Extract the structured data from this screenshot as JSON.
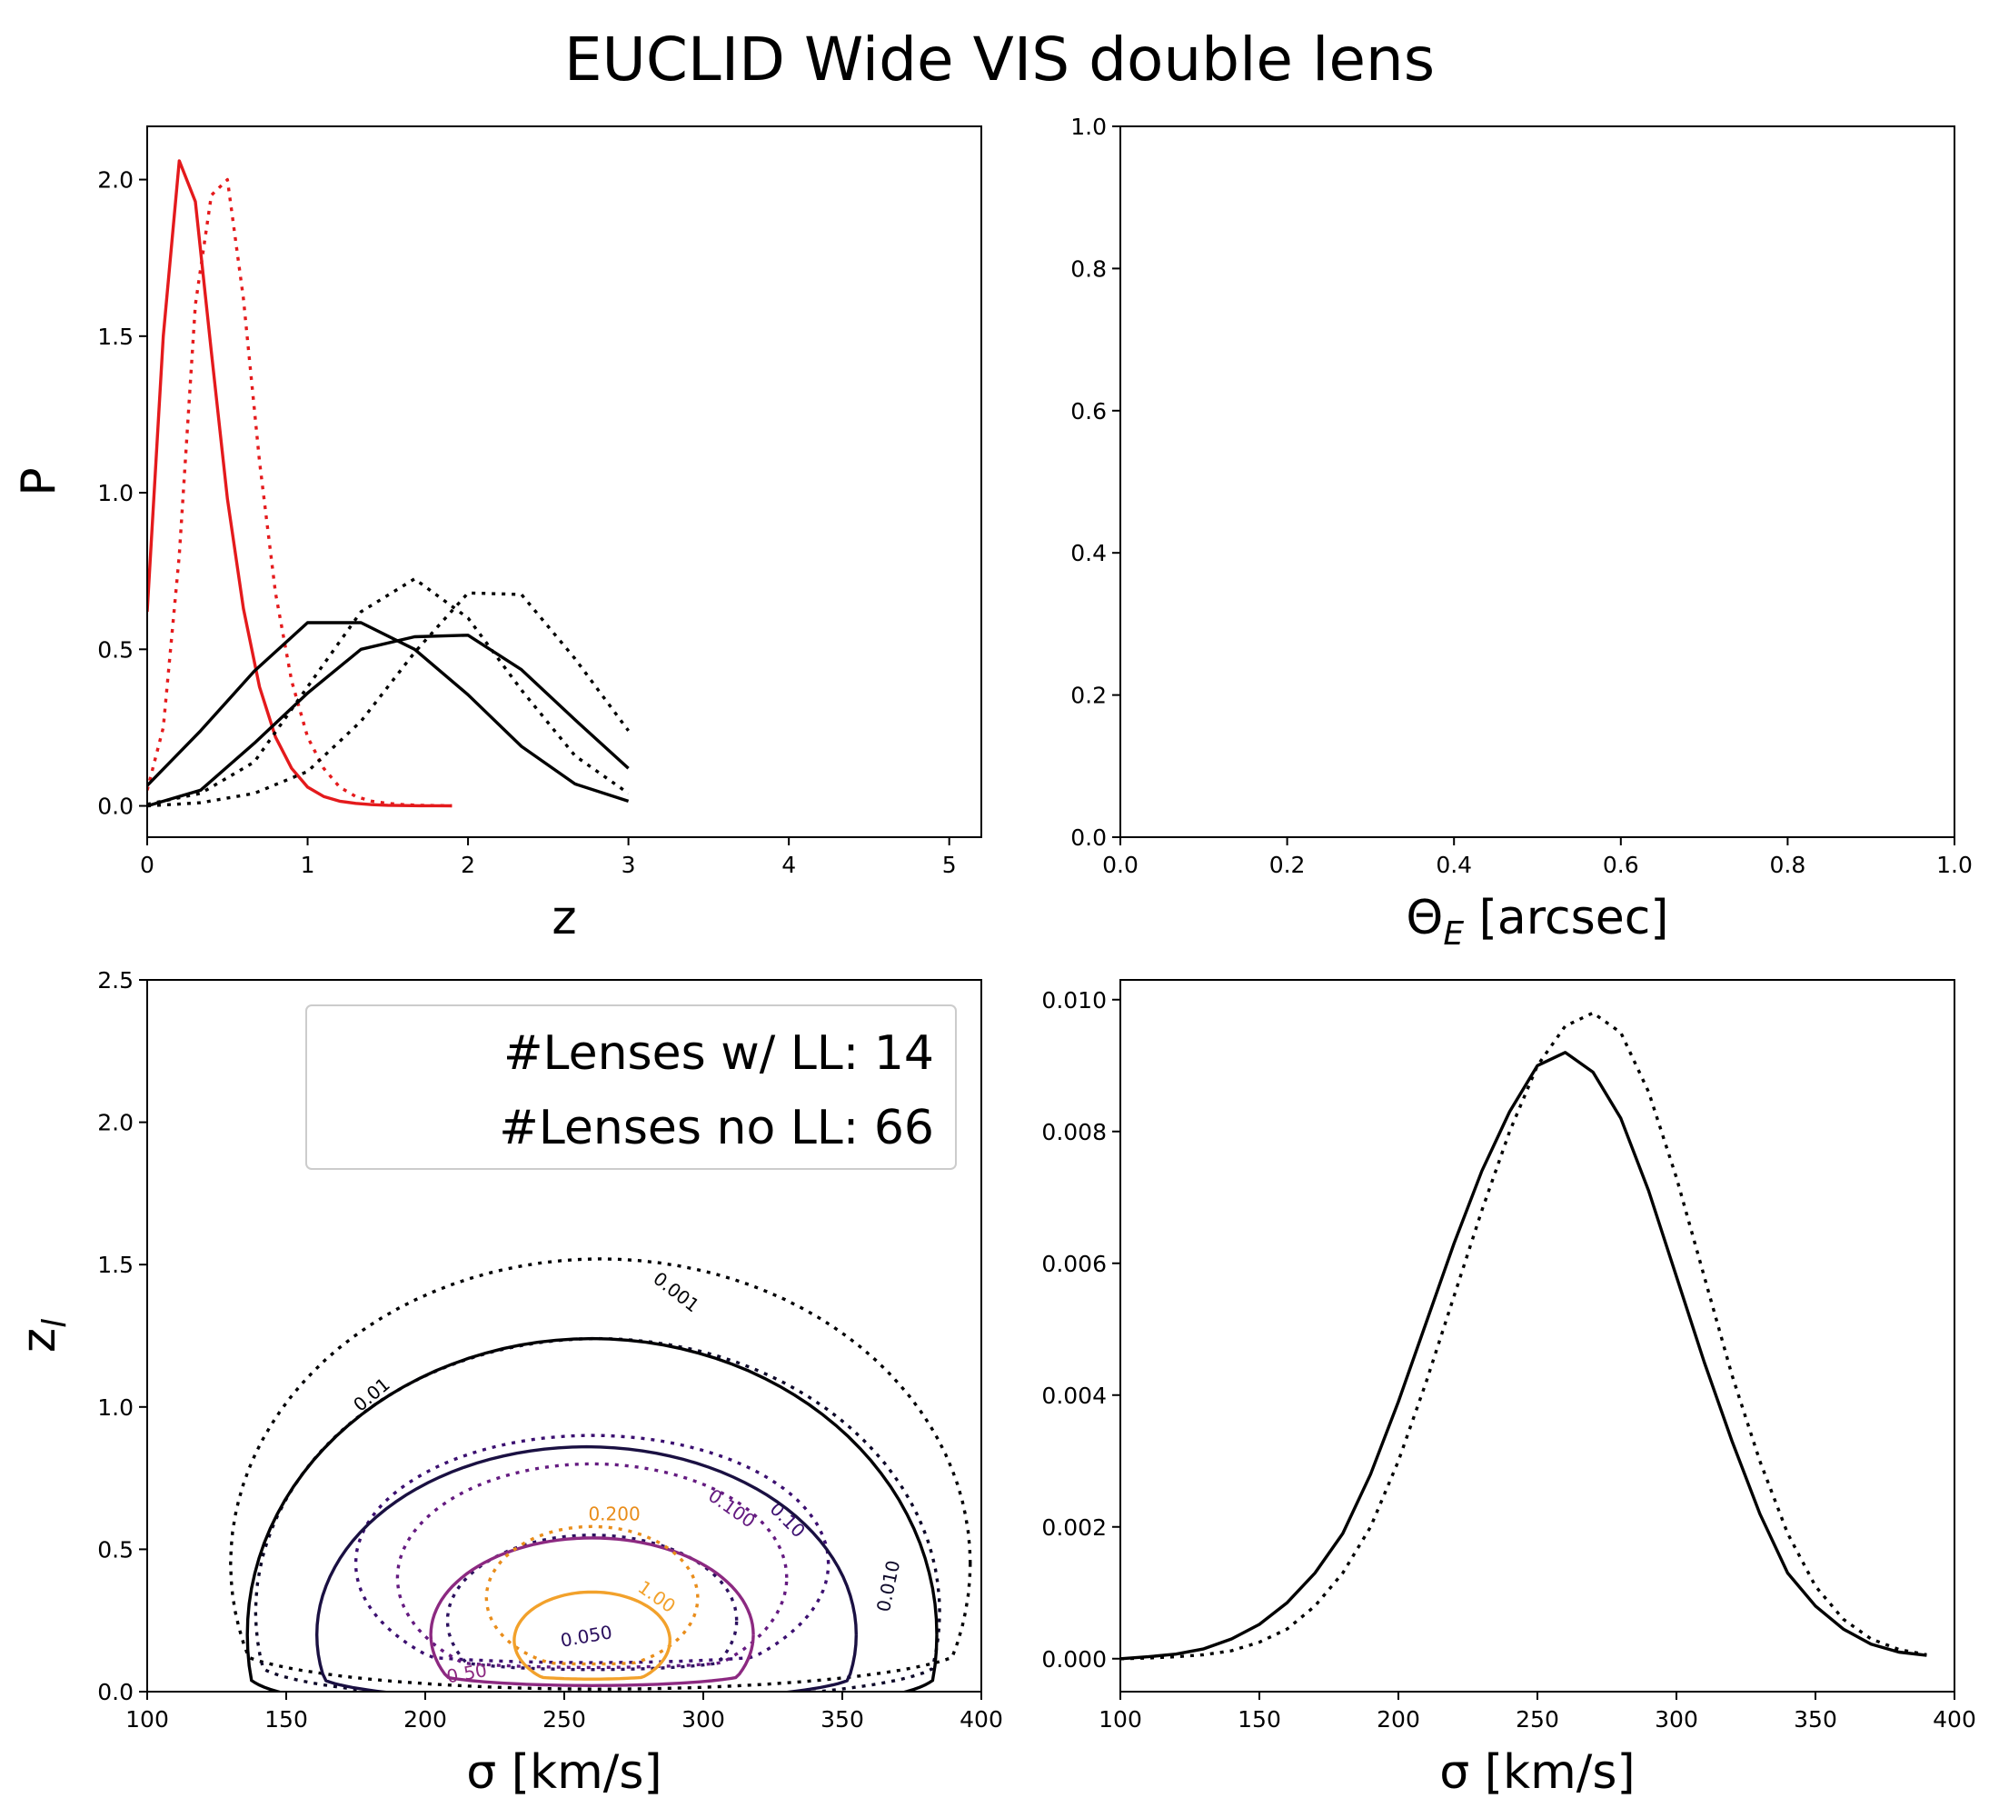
{
  "figure": {
    "title": "EUCLID Wide VIS double lens"
  },
  "chart_data": [
    {
      "panel": "top-left",
      "type": "line",
      "xlabel": "z",
      "ylabel": "P",
      "xlim": [
        0,
        5.2
      ],
      "ylim": [
        -0.1,
        2.17
      ],
      "xticks": [
        0,
        1,
        2,
        3,
        4,
        5
      ],
      "xtick_labels": [
        "0",
        "1",
        "2",
        "3",
        "4",
        "5"
      ],
      "yticks": [
        0.0,
        0.5,
        1.0,
        1.5,
        2.0
      ],
      "ytick_labels": [
        "0.0",
        "0.5",
        "1.0",
        "1.5",
        "2.0"
      ],
      "series": [
        {
          "color": "#e41a1c",
          "style": "solid",
          "x": [
            0,
            0.1,
            0.2,
            0.3,
            0.4,
            0.5,
            0.6,
            0.7,
            0.8,
            0.9,
            1.0,
            1.1,
            1.2,
            1.3,
            1.4,
            1.5,
            1.6,
            1.7,
            1.8,
            1.9
          ],
          "y": [
            0.62,
            1.5,
            2.06,
            1.93,
            1.45,
            0.98,
            0.63,
            0.38,
            0.22,
            0.12,
            0.06,
            0.03,
            0.015,
            0.008,
            0.004,
            0.002,
            0.001,
            0.0005,
            0.0003,
            0.0002
          ]
        },
        {
          "color": "#e41a1c",
          "style": "dotted",
          "x": [
            0,
            0.1,
            0.2,
            0.3,
            0.4,
            0.5,
            0.6,
            0.7,
            0.8,
            0.9,
            1.0,
            1.1,
            1.2,
            1.3,
            1.4,
            1.5,
            1.6,
            1.7,
            1.8,
            1.9
          ],
          "y": [
            0.05,
            0.25,
            0.8,
            1.6,
            1.95,
            2.0,
            1.62,
            1.1,
            0.68,
            0.4,
            0.22,
            0.12,
            0.06,
            0.03,
            0.015,
            0.008,
            0.004,
            0.002,
            0.001,
            0.0005
          ]
        },
        {
          "color": "#000000",
          "style": "solid",
          "x": [
            0,
            0.333,
            0.667,
            1.0,
            1.333,
            1.667,
            2.0,
            2.333,
            2.667,
            3.0
          ],
          "y": [
            0.065,
            0.24,
            0.43,
            0.585,
            0.585,
            0.5,
            0.355,
            0.19,
            0.07,
            0.015
          ]
        },
        {
          "color": "#000000",
          "style": "solid",
          "x": [
            0,
            0.333,
            0.667,
            1.0,
            1.333,
            1.667,
            2.0,
            2.333,
            2.667,
            3.0
          ],
          "y": [
            0.0,
            0.05,
            0.2,
            0.36,
            0.5,
            0.54,
            0.545,
            0.435,
            0.275,
            0.12
          ]
        },
        {
          "color": "#000000",
          "style": "dotted",
          "x": [
            0,
            0.333,
            0.667,
            1.0,
            1.333,
            1.667,
            2.0,
            2.333,
            2.667,
            3.0
          ],
          "y": [
            0.005,
            0.04,
            0.14,
            0.38,
            0.62,
            0.725,
            0.6,
            0.37,
            0.16,
            0.04
          ]
        },
        {
          "color": "#000000",
          "style": "dotted",
          "x": [
            0,
            0.333,
            0.667,
            1.0,
            1.333,
            1.667,
            2.0,
            2.333,
            2.667,
            3.0
          ],
          "y": [
            0.0,
            0.01,
            0.04,
            0.11,
            0.27,
            0.49,
            0.68,
            0.675,
            0.47,
            0.24
          ]
        }
      ]
    },
    {
      "panel": "top-right",
      "type": "line",
      "xlabel": "Θ_E [arcsec]",
      "ylabel": "",
      "xlim": [
        0,
        1
      ],
      "ylim": [
        0,
        1
      ],
      "xticks": [
        0.0,
        0.2,
        0.4,
        0.6,
        0.8,
        1.0
      ],
      "xtick_labels": [
        "0.0",
        "0.2",
        "0.4",
        "0.6",
        "0.8",
        "1.0"
      ],
      "yticks": [
        0.0,
        0.2,
        0.4,
        0.6,
        0.8,
        1.0
      ],
      "ytick_labels": [
        "0.0",
        "0.2",
        "0.4",
        "0.6",
        "0.8",
        "1.0"
      ],
      "series": []
    },
    {
      "panel": "bottom-left",
      "type": "contour",
      "xlabel": "σ [km/s]",
      "ylabel": "z_l",
      "xlim": [
        100,
        400
      ],
      "ylim": [
        0,
        2.5
      ],
      "xticks": [
        100,
        150,
        200,
        250,
        300,
        350,
        400
      ],
      "xtick_labels": [
        "100",
        "150",
        "200",
        "250",
        "300",
        "350",
        "400"
      ],
      "yticks": [
        0.0,
        0.5,
        1.0,
        1.5,
        2.0,
        2.5
      ],
      "ytick_labels": [
        "0.0",
        "0.5",
        "1.0",
        "1.5",
        "2.0",
        "2.5"
      ],
      "legend": {
        "placement": "upper right",
        "lines": [
          "#Lenses w/ LL: 14",
          "#Lenses no LL: 66"
        ]
      },
      "contours": [
        {
          "label": "0.001",
          "style": "dotted",
          "color": "#000004",
          "cx": 263,
          "cy": 0.45,
          "rx": 133,
          "ry": 1.07,
          "ybottom": 0.12,
          "label_at": [
            290,
            1.4
          ],
          "label_rot": 38
        },
        {
          "label": "0.010",
          "style": "dotted",
          "color": "#0d0829",
          "cx": 262,
          "cy": 0.28,
          "rx": 123,
          "ry": 0.96,
          "ybottom": 0.08,
          "label_at": [
            367,
            0.37
          ],
          "label_rot": -78
        },
        {
          "label": "0.01",
          "style": "solid",
          "color": "#000004",
          "cx": 260,
          "cy": 0.2,
          "rx": 124,
          "ry": 1.04,
          "ybottom": 0.04,
          "label_at": [
            181,
            1.04
          ],
          "label_rot": -40
        },
        {
          "label": "0.10",
          "style": "dotted",
          "color": "#3b0f70",
          "cx": 260,
          "cy": 0.45,
          "rx": 85,
          "ry": 0.45,
          "ybottom": 0.12,
          "label_at": [
            330,
            0.6
          ],
          "label_rot": 45
        },
        {
          "label": "",
          "style": "solid",
          "color": "#1a1042",
          "cx": 258,
          "cy": 0.2,
          "rx": 97,
          "ry": 0.66,
          "ybottom": 0.04,
          "label_at": null,
          "label_rot": 0
        },
        {
          "label": "0.100",
          "style": "dotted",
          "color": "#641a80",
          "cx": 260,
          "cy": 0.4,
          "rx": 70,
          "ry": 0.4,
          "ybottom": 0.1,
          "label_at": [
            310,
            0.64
          ],
          "label_rot": 35
        },
        {
          "label": "0.050",
          "style": "dotted",
          "color": "#2c115f",
          "cx": 260,
          "cy": 0.25,
          "rx": 52,
          "ry": 0.3,
          "ybottom": 0.1,
          "label_at": [
            258,
            0.19
          ],
          "label_rot": -10
        },
        {
          "label": "0.50",
          "style": "solid",
          "color": "#8c2981",
          "cx": 260,
          "cy": 0.2,
          "rx": 58,
          "ry": 0.34,
          "ybottom": 0.05,
          "label_at": [
            215,
            0.06
          ],
          "label_rot": -10
        },
        {
          "label": "0.200",
          "style": "dotted",
          "color": "#e98d1b",
          "cx": 260,
          "cy": 0.33,
          "rx": 38,
          "ry": 0.25,
          "ybottom": 0.1,
          "label_at": [
            268,
            0.62
          ],
          "label_rot": 0
        },
        {
          "label": "1.00",
          "style": "solid",
          "color": "#f2a12b",
          "cx": 260,
          "cy": 0.18,
          "rx": 28,
          "ry": 0.17,
          "ybottom": 0.05,
          "label_at": [
            283,
            0.33
          ],
          "label_rot": 35
        }
      ]
    },
    {
      "panel": "bottom-right",
      "type": "line",
      "xlabel": "σ [km/s]",
      "ylabel": "",
      "xlim": [
        100,
        400
      ],
      "ylim": [
        -0.0005,
        0.0103
      ],
      "xticks": [
        100,
        150,
        200,
        250,
        300,
        350,
        400
      ],
      "xtick_labels": [
        "100",
        "150",
        "200",
        "250",
        "300",
        "350",
        "400"
      ],
      "yticks": [
        0.0,
        0.002,
        0.004,
        0.006,
        0.008,
        0.01
      ],
      "ytick_labels": [
        "0.000",
        "0.002",
        "0.004",
        "0.006",
        "0.008",
        "0.010"
      ],
      "series": [
        {
          "color": "#000000",
          "style": "solid",
          "x": [
            100,
            110,
            120,
            130,
            140,
            150,
            160,
            170,
            180,
            190,
            200,
            210,
            220,
            230,
            240,
            250,
            260,
            270,
            280,
            290,
            300,
            310,
            320,
            330,
            340,
            350,
            360,
            370,
            380,
            390
          ],
          "y": [
            0.0,
            3e-05,
            7e-05,
            0.00015,
            0.0003,
            0.00052,
            0.00085,
            0.0013,
            0.0019,
            0.0028,
            0.0039,
            0.0051,
            0.0063,
            0.0074,
            0.0083,
            0.009,
            0.0092,
            0.0089,
            0.0082,
            0.0071,
            0.0058,
            0.0045,
            0.0033,
            0.0022,
            0.0013,
            0.0008,
            0.00045,
            0.00022,
            0.0001,
            5e-05
          ]
        },
        {
          "color": "#000000",
          "style": "dotted",
          "x": [
            100,
            110,
            120,
            130,
            140,
            150,
            160,
            170,
            180,
            190,
            200,
            210,
            220,
            230,
            240,
            250,
            260,
            270,
            280,
            290,
            300,
            310,
            320,
            330,
            340,
            350,
            360,
            370,
            380,
            390
          ],
          "y": [
            0.0,
            1e-05,
            3e-05,
            6e-05,
            0.00012,
            0.00025,
            0.00045,
            0.0008,
            0.0013,
            0.002,
            0.003,
            0.0042,
            0.0055,
            0.0068,
            0.008,
            0.009,
            0.0096,
            0.0098,
            0.0095,
            0.0086,
            0.0073,
            0.0058,
            0.0043,
            0.003,
            0.0019,
            0.0011,
            0.0006,
            0.0003,
            0.00014,
            6e-05
          ]
        }
      ]
    }
  ]
}
